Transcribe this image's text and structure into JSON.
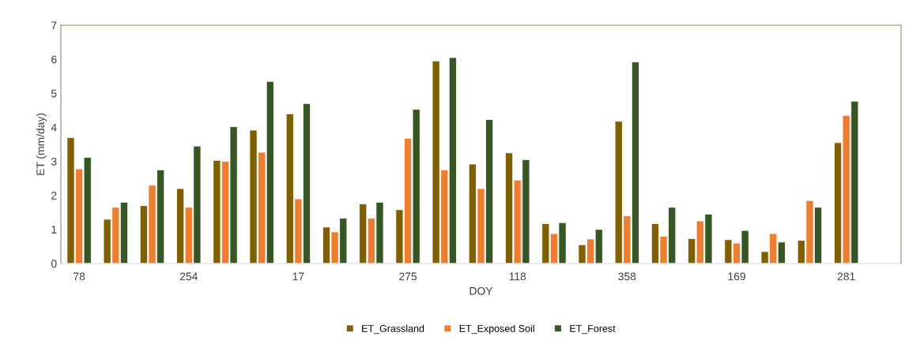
{
  "chart_data": {
    "type": "bar",
    "xlabel": "DOY",
    "ylabel": "ET (mm/day)",
    "categories": [
      "78",
      null,
      null,
      "254",
      null,
      null,
      "17",
      null,
      null,
      "275",
      null,
      null,
      "118",
      null,
      null,
      "358",
      null,
      null,
      "169",
      null,
      null,
      "281",
      null
    ],
    "series": [
      {
        "name": "ET_Grassland",
        "color": "#7f6000",
        "values": [
          3.7,
          1.3,
          1.7,
          2.2,
          3.03,
          3.92,
          4.4,
          1.07,
          1.75,
          1.58,
          5.95,
          2.92,
          3.25,
          1.17,
          0.55,
          4.18,
          1.17,
          0.73,
          0.7,
          0.35,
          0.68,
          3.55,
          null
        ]
      },
      {
        "name": "ET_Exposed Soil",
        "color": "#ed7d31",
        "values": [
          2.78,
          1.65,
          2.3,
          1.65,
          3.0,
          3.27,
          1.9,
          0.93,
          1.33,
          3.68,
          2.75,
          2.2,
          2.45,
          0.88,
          0.72,
          1.4,
          0.8,
          1.25,
          0.6,
          0.88,
          1.85,
          4.35,
          null
        ]
      },
      {
        "name": "ET_Forest",
        "color": "#375623",
        "values": [
          3.12,
          1.8,
          2.75,
          3.45,
          4.02,
          5.35,
          4.7,
          1.33,
          1.8,
          4.53,
          6.05,
          4.23,
          3.05,
          1.2,
          1.0,
          5.92,
          1.65,
          1.45,
          0.97,
          0.63,
          1.65,
          4.77,
          null
        ]
      }
    ],
    "ylim": [
      0,
      7
    ],
    "yticks": [
      0,
      1,
      2,
      3,
      4,
      5,
      6,
      7
    ],
    "grid": false,
    "legend": "bottom"
  }
}
